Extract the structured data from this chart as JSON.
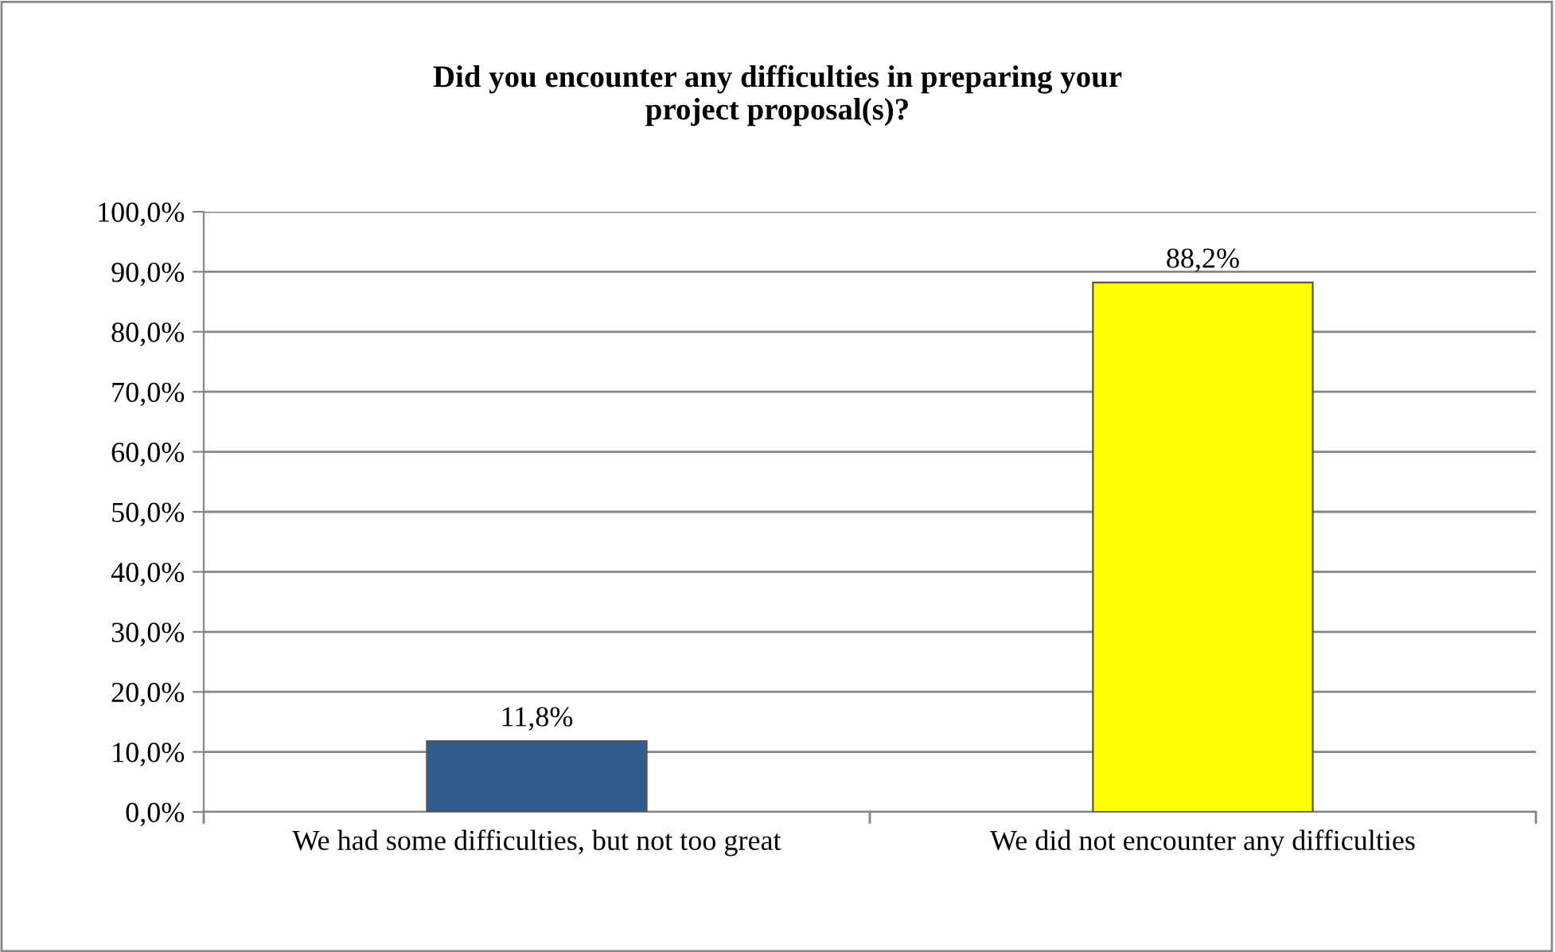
{
  "chart_data": {
    "type": "bar",
    "title": "Did you encounter any difficulties in preparing your\nproject proposal(s)?",
    "categories": [
      "We had some difficulties, but not too great",
      "We did not encounter any difficulties"
    ],
    "values": [
      11.8,
      88.2
    ],
    "colors": [
      "#2f5d8e",
      "#ffff00"
    ],
    "value_labels": [
      "11,8%",
      "88,2%"
    ],
    "ylim": [
      0,
      100
    ],
    "yticks": [
      {
        "value": 0,
        "label": "0,0%"
      },
      {
        "value": 10,
        "label": "10,0%"
      },
      {
        "value": 20,
        "label": "20,0%"
      },
      {
        "value": 30,
        "label": "30,0%"
      },
      {
        "value": 40,
        "label": "40,0%"
      },
      {
        "value": 50,
        "label": "50,0%"
      },
      {
        "value": 60,
        "label": "60,0%"
      },
      {
        "value": 70,
        "label": "70,0%"
      },
      {
        "value": 80,
        "label": "80,0%"
      },
      {
        "value": 90,
        "label": "90,0%"
      },
      {
        "value": 100,
        "label": "100,0%"
      }
    ],
    "grid": "y",
    "legend": false
  }
}
